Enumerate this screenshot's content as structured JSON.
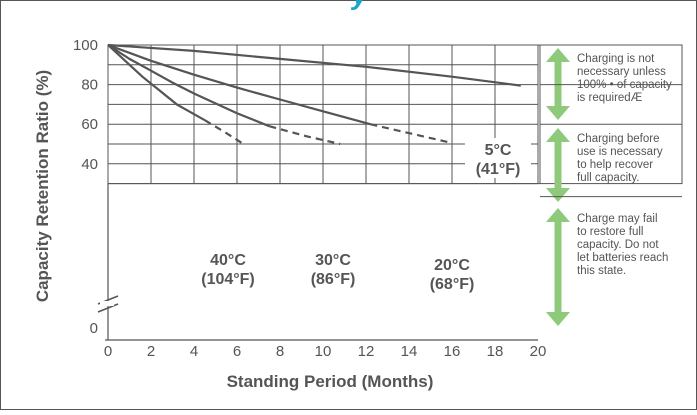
{
  "header_fragment": "y",
  "chart_data": {
    "type": "line",
    "xlabel": "Standing Period (Months)",
    "ylabel": "Capacity Retention Ratio (%)",
    "xlim": [
      0,
      20
    ],
    "ylim": [
      0,
      100
    ],
    "axis_break": "between 0 and 40",
    "grid": true,
    "x_ticks": [
      "0",
      "2",
      "4",
      "6",
      "8",
      "10",
      "12",
      "14",
      "16",
      "18",
      "20"
    ],
    "y_ticks": [
      {
        "value": 0,
        "label": "0"
      },
      {
        "value": 40,
        "label": "40"
      },
      {
        "value": 60,
        "label": "60"
      },
      {
        "value": 80,
        "label": "80"
      },
      {
        "value": 100,
        "label": "100"
      }
    ],
    "series": [
      {
        "label_line1": "5°C",
        "label_line2": "(41°F)",
        "color": "#555555",
        "solid": [
          [
            0,
            100
          ],
          [
            4,
            97
          ],
          [
            8,
            93
          ],
          [
            12,
            89
          ],
          [
            16,
            84
          ],
          [
            19.2,
            79.5
          ]
        ],
        "dashed": []
      },
      {
        "label_line1": "20°C",
        "label_line2": "(68°F)",
        "color": "#555555",
        "solid": [
          [
            0,
            100
          ],
          [
            2,
            92
          ],
          [
            4,
            85
          ],
          [
            6,
            78.5
          ],
          [
            8,
            72.5
          ],
          [
            10,
            66.5
          ],
          [
            12.2,
            60
          ]
        ],
        "dashed": [
          [
            12.2,
            60
          ],
          [
            14,
            55.5
          ],
          [
            15.8,
            51
          ]
        ]
      },
      {
        "label_line1": "30°C",
        "label_line2": "(86°F)",
        "color": "#555555",
        "solid": [
          [
            0,
            100
          ],
          [
            1,
            93
          ],
          [
            2,
            87
          ],
          [
            3,
            81
          ],
          [
            4,
            75.5
          ],
          [
            5,
            70.5
          ],
          [
            6,
            65.5
          ],
          [
            7.5,
            59
          ]
        ],
        "dashed": [
          [
            7.5,
            59
          ],
          [
            9.2,
            54
          ],
          [
            10.8,
            50
          ]
        ]
      },
      {
        "label_line1": "40°C",
        "label_line2": "(104°F)",
        "color": "#555555",
        "solid": [
          [
            0,
            100
          ],
          [
            0.8,
            92
          ],
          [
            1.6,
            84
          ],
          [
            2.4,
            77
          ],
          [
            3.2,
            70
          ],
          [
            4.5,
            62
          ]
        ],
        "dashed": [
          [
            4.5,
            62
          ],
          [
            5.5,
            55.5
          ],
          [
            6.3,
            50
          ]
        ]
      }
    ],
    "zones": [
      {
        "from": 80,
        "to": 100,
        "note": [
          "Charging is not",
          "necessary unless",
          "100% • of capacity",
          "is requiredÆ"
        ]
      },
      {
        "from": 60,
        "to": 80,
        "note": [
          "Charging before",
          "use is necessary",
          "to help recover",
          "full capacity."
        ]
      },
      {
        "from": 30,
        "to": 60,
        "note": [
          "Charge may fail",
          "to restore full",
          "capacity. Do not",
          "let batteries reach",
          "this state."
        ]
      }
    ],
    "colors": {
      "curve": "#555555",
      "grid": "#555555",
      "arrow": "#8fc97a",
      "header": "#1aa8c8",
      "axis_text": "#555555"
    }
  }
}
